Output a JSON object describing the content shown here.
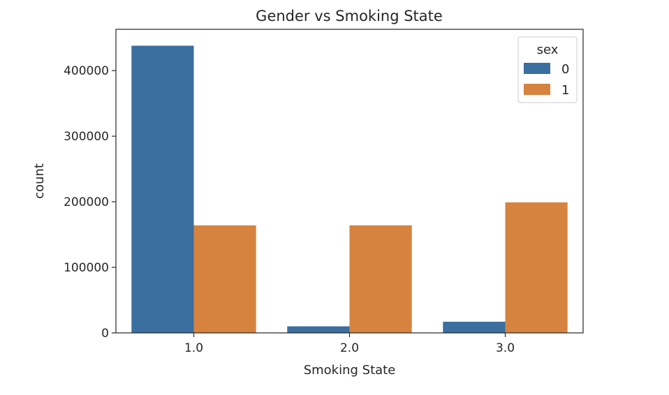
{
  "chart_data": {
    "type": "bar",
    "title": "Gender vs Smoking State",
    "xlabel": "Smoking State",
    "ylabel": "count",
    "categories": [
      "1.0",
      "2.0",
      "3.0"
    ],
    "series": [
      {
        "name": "0",
        "values": [
          438000,
          10000,
          17000
        ],
        "color": "#3a6f9f"
      },
      {
        "name": "1",
        "values": [
          164000,
          164000,
          199000
        ],
        "color": "#d6833f"
      }
    ],
    "ylim": [
      0,
      463000
    ],
    "yticks": [
      0,
      100000,
      200000,
      300000,
      400000
    ],
    "ytick_labels": [
      "0",
      "100000",
      "200000",
      "300000",
      "400000"
    ],
    "legend": {
      "title": "sex",
      "position": "top-right"
    },
    "grid": false
  }
}
